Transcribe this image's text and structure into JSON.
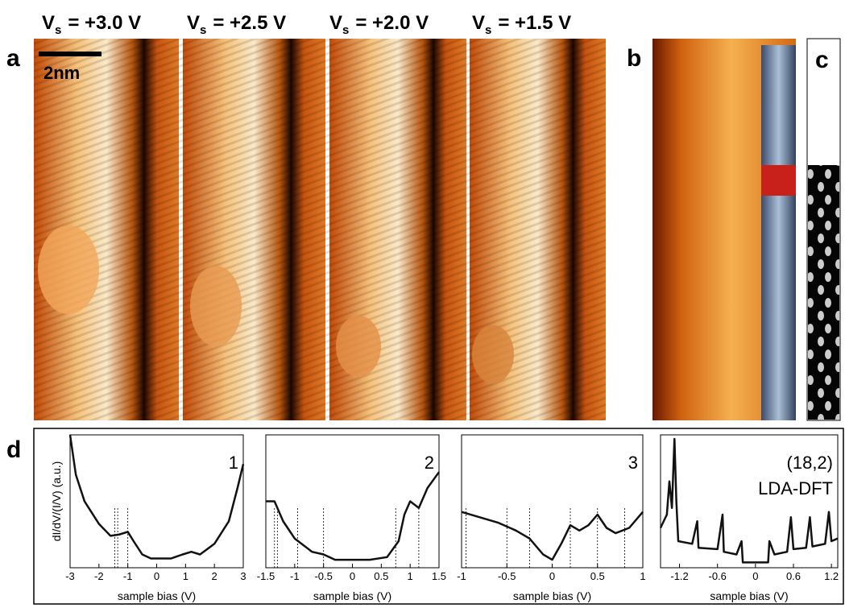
{
  "panel_labels": [
    "a",
    "b",
    "c",
    "d"
  ],
  "scale_bar": "2nm",
  "bias_labels": [
    {
      "symbol": "V",
      "subscript": "s",
      "text": "= +3.0 V"
    },
    {
      "symbol": "V",
      "subscript": "s",
      "text": "= +2.5 V"
    },
    {
      "symbol": "V",
      "subscript": "s",
      "text": "= +2.0 V"
    },
    {
      "symbol": "V",
      "subscript": "s",
      "text": "= +1.5 V"
    }
  ],
  "chart_data": [
    {
      "type": "line",
      "annotation": [
        "1"
      ],
      "ylabel": "dI/dV/(I/V) (a.u.)",
      "xlabel": "sample bias (V)",
      "color": "#111111",
      "xlim": [
        -3,
        3
      ],
      "xticks": [
        -3,
        -2,
        -1,
        0,
        1,
        2,
        3
      ],
      "ylim": [
        0,
        1
      ],
      "markers": [
        -1.45,
        -1.35,
        -1.0
      ],
      "x": [
        -3,
        -2.8,
        -2.5,
        -2,
        -1.6,
        -1.3,
        -1,
        -0.8,
        -0.5,
        -0.2,
        0,
        0.5,
        0.9,
        1.2,
        1.5,
        2,
        2.5,
        2.8,
        3
      ],
      "values": [
        1.0,
        0.7,
        0.5,
        0.33,
        0.24,
        0.25,
        0.27,
        0.2,
        0.1,
        0.07,
        0.07,
        0.07,
        0.1,
        0.12,
        0.1,
        0.18,
        0.35,
        0.6,
        0.78
      ]
    },
    {
      "type": "line",
      "annotation": [
        "2"
      ],
      "xlabel": "sample bias (V)",
      "color": "#111111",
      "xlim": [
        -1.5,
        1.5
      ],
      "xticks": [
        -1.5,
        -1,
        -0.5,
        0,
        0.5,
        1,
        1.5
      ],
      "ylim": [
        0,
        1
      ],
      "markers": [
        -1.35,
        -1.3,
        -0.95,
        -0.5,
        0.75,
        1.15
      ],
      "x": [
        -1.5,
        -1.35,
        -1.2,
        -1,
        -0.7,
        -0.5,
        -0.3,
        0,
        0.3,
        0.6,
        0.8,
        0.9,
        1.0,
        1.15,
        1.3,
        1.5
      ],
      "values": [
        0.5,
        0.5,
        0.35,
        0.22,
        0.12,
        0.1,
        0.06,
        0.06,
        0.06,
        0.08,
        0.2,
        0.4,
        0.5,
        0.45,
        0.6,
        0.72
      ]
    },
    {
      "type": "line",
      "annotation": [
        "3"
      ],
      "xlabel": "sample bias (V)",
      "color": "#111111",
      "xlim": [
        -1,
        1
      ],
      "xticks": [
        -1,
        -0.5,
        0,
        0.5,
        1
      ],
      "ylim": [
        0,
        1
      ],
      "markers": [
        -0.95,
        -0.5,
        -0.25,
        0.2,
        0.5,
        0.8
      ],
      "x": [
        -1,
        -0.8,
        -0.6,
        -0.4,
        -0.25,
        -0.1,
        0,
        0.1,
        0.2,
        0.3,
        0.4,
        0.5,
        0.6,
        0.7,
        0.85,
        1
      ],
      "values": [
        0.42,
        0.38,
        0.34,
        0.28,
        0.22,
        0.1,
        0.06,
        0.18,
        0.32,
        0.28,
        0.32,
        0.4,
        0.3,
        0.26,
        0.3,
        0.42
      ]
    },
    {
      "type": "line",
      "annotation": [
        "(18,2)",
        "LDA-DFT"
      ],
      "xlabel": "sample bias (V)",
      "color": "#111111",
      "xlim": [
        -1.5,
        1.3
      ],
      "xticks": [
        -1.2,
        -0.6,
        0,
        0.6,
        1.2
      ],
      "ylim": [
        0,
        1
      ],
      "markers": [],
      "x": [
        -1.5,
        -1.4,
        -1.36,
        -1.32,
        -1.28,
        -1.25,
        -1.22,
        -1.0,
        -0.92,
        -0.9,
        -0.6,
        -0.52,
        -0.5,
        -0.3,
        -0.22,
        -0.2,
        0.2,
        0.22,
        0.3,
        0.5,
        0.56,
        0.6,
        0.8,
        0.86,
        0.9,
        1.1,
        1.16,
        1.2,
        1.3
      ],
      "values": [
        0.3,
        0.4,
        0.65,
        0.45,
        0.97,
        0.5,
        0.2,
        0.18,
        0.35,
        0.15,
        0.14,
        0.4,
        0.12,
        0.1,
        0.2,
        0.04,
        0.04,
        0.2,
        0.1,
        0.12,
        0.38,
        0.14,
        0.15,
        0.38,
        0.16,
        0.18,
        0.42,
        0.2,
        0.22
      ]
    }
  ]
}
